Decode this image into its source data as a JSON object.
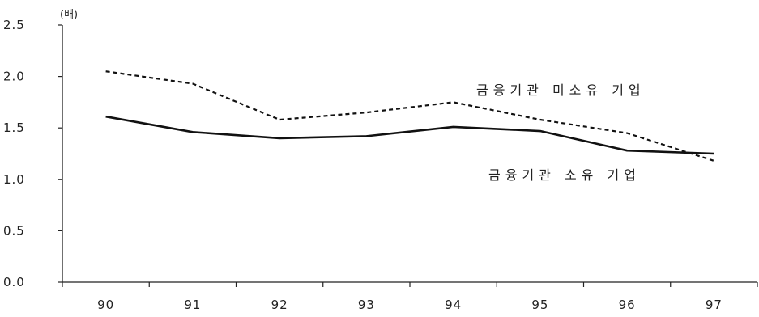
{
  "chart_data": {
    "type": "line",
    "title": "",
    "unit_label": "(배)",
    "xlabel": "",
    "ylabel": "",
    "categories": [
      "90",
      "91",
      "92",
      "93",
      "94",
      "95",
      "96",
      "97"
    ],
    "ylim": [
      0,
      2.5
    ],
    "yticks": [
      0.0,
      0.5,
      1.0,
      1.5,
      2.0,
      2.5
    ],
    "ytick_labels": [
      "0.0",
      "0.5",
      "1.0",
      "1.5",
      "2.0",
      "2.5"
    ],
    "grid": false,
    "legend": "none",
    "series": [
      {
        "name": "금융기관 미소유 기업",
        "style": "dashed",
        "color": "#111111",
        "values": [
          2.05,
          1.93,
          1.58,
          1.65,
          1.75,
          1.58,
          1.45,
          1.18
        ]
      },
      {
        "name": "금융기관 소유 기업",
        "style": "solid",
        "color": "#111111",
        "values": [
          1.61,
          1.46,
          1.4,
          1.42,
          1.51,
          1.47,
          1.28,
          1.25
        ]
      }
    ]
  }
}
